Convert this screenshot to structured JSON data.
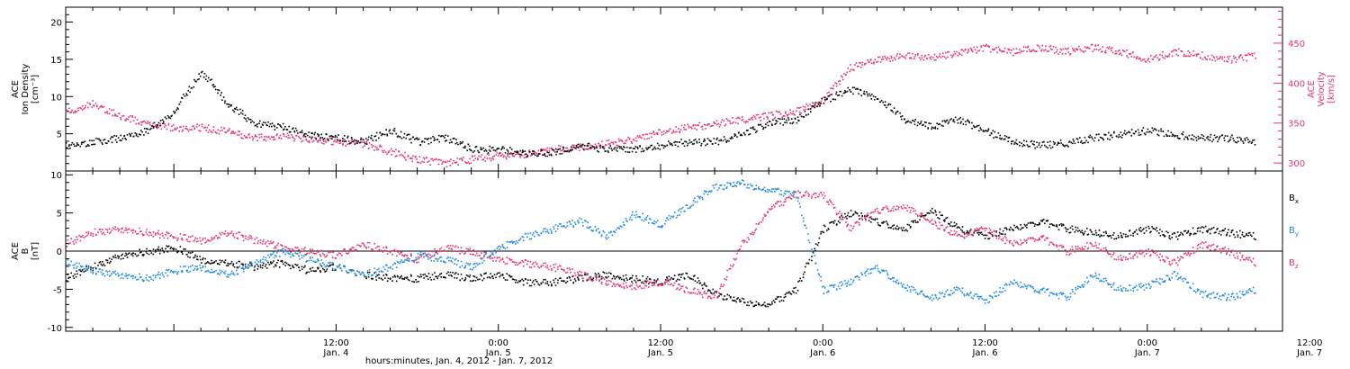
{
  "colors": {
    "black": "#000000",
    "pink": "#e8336d",
    "blue": "#1f8ae6"
  },
  "x_axis": {
    "label": "hours:minutes, Jan.  4, 2012 - Jan.  7, 2012",
    "range_hours": [
      -8,
      82
    ],
    "ticks": [
      {
        "h": 12,
        "time": "12:00",
        "date": "Jan. 4"
      },
      {
        "h": 24,
        "time": "0:00",
        "date": "Jan. 5"
      },
      {
        "h": 36,
        "time": "12:00",
        "date": "Jan. 5"
      },
      {
        "h": 48,
        "time": "0:00",
        "date": "Jan. 6"
      },
      {
        "h": 60,
        "time": "12:00",
        "date": "Jan. 6"
      },
      {
        "h": 72,
        "time": "0:00",
        "date": "Jan. 7"
      },
      {
        "h": 84,
        "time": "12:00",
        "date": "Jan. 7"
      }
    ]
  },
  "chart_data": [
    {
      "type": "scatter",
      "panel": "top",
      "left_axis": {
        "label_lines": [
          "ACE",
          "Ion Density",
          "[cm⁻³]"
        ],
        "range": [
          0,
          22
        ],
        "ticks": [
          5,
          10,
          15,
          20
        ]
      },
      "right_axis": {
        "label_lines": [
          "ACE",
          "Velocity",
          "[km/s]"
        ],
        "range": [
          290,
          495
        ],
        "ticks": [
          300,
          350,
          400,
          450
        ]
      },
      "grid": false,
      "series": [
        {
          "axis": "left",
          "color": "black",
          "x": [
            -8,
            -6,
            -4,
            -2,
            0,
            2,
            4,
            6,
            8,
            10,
            12,
            14,
            16,
            18,
            20,
            22,
            24,
            26,
            28,
            30,
            32,
            34,
            36,
            38,
            40,
            42,
            44,
            46,
            48,
            50,
            52,
            54,
            56,
            58,
            60,
            62,
            64,
            66,
            68,
            70,
            72,
            74,
            76,
            78,
            80
          ],
          "y": [
            3.5,
            4.0,
            4.5,
            5.5,
            8.0,
            13.5,
            9.0,
            6.5,
            6.0,
            5.0,
            4.5,
            4.0,
            5.5,
            4.0,
            4.5,
            3.0,
            3.0,
            2.5,
            2.5,
            3.5,
            3.0,
            3.0,
            3.5,
            4.0,
            4.0,
            5.0,
            6.5,
            7.0,
            9.5,
            11.0,
            10.0,
            7.0,
            6.0,
            7.0,
            5.5,
            4.0,
            3.5,
            3.8,
            4.5,
            5.0,
            5.5,
            5.0,
            4.5,
            4.5,
            4.0
          ]
        },
        {
          "axis": "right",
          "color": "pink",
          "x": [
            -8,
            -6,
            -4,
            -2,
            0,
            2,
            4,
            6,
            8,
            10,
            12,
            14,
            16,
            18,
            20,
            22,
            24,
            26,
            28,
            30,
            32,
            34,
            36,
            38,
            40,
            42,
            44,
            46,
            48,
            50,
            52,
            54,
            56,
            58,
            60,
            62,
            64,
            66,
            68,
            70,
            72,
            74,
            76,
            78,
            80
          ],
          "y": [
            365,
            375,
            360,
            350,
            345,
            345,
            340,
            332,
            335,
            330,
            328,
            325,
            315,
            305,
            300,
            305,
            310,
            312,
            318,
            320,
            325,
            330,
            340,
            345,
            350,
            355,
            360,
            365,
            380,
            420,
            430,
            435,
            432,
            438,
            445,
            440,
            445,
            440,
            445,
            440,
            430,
            440,
            435,
            430,
            435
          ]
        }
      ]
    },
    {
      "type": "scatter",
      "panel": "bottom",
      "left_axis": {
        "label_lines": [
          "ACE",
          "B",
          "[nT]"
        ],
        "range": [
          -10.5,
          10.5
        ],
        "ticks": [
          -10,
          -5,
          0,
          5,
          10
        ]
      },
      "zero_line": true,
      "grid": false,
      "legend_labels": [
        {
          "text": "B",
          "sub": "x",
          "color": "black"
        },
        {
          "text": "B",
          "sub": "y",
          "color": "blue"
        },
        {
          "text": "B",
          "sub": "z",
          "color": "pink"
        }
      ],
      "series": [
        {
          "color": "black",
          "x": [
            -8,
            -6,
            -4,
            -2,
            0,
            2,
            4,
            6,
            8,
            10,
            12,
            14,
            16,
            18,
            20,
            22,
            24,
            26,
            28,
            30,
            32,
            34,
            36,
            38,
            40,
            42,
            44,
            46,
            48,
            50,
            52,
            54,
            56,
            58,
            60,
            62,
            64,
            66,
            68,
            70,
            72,
            74,
            76,
            78,
            80
          ],
          "y": [
            -3.5,
            -2.0,
            -0.5,
            0.0,
            0.5,
            -1.0,
            -1.5,
            -2.0,
            -1.5,
            -2.5,
            -2.0,
            -3.0,
            -3.5,
            -3.5,
            -3.0,
            -3.5,
            -3.0,
            -4.0,
            -4.0,
            -3.5,
            -3.0,
            -3.5,
            -4.0,
            -3.0,
            -5.5,
            -6.5,
            -7.0,
            -5.0,
            3.0,
            5.0,
            4.0,
            3.0,
            5.5,
            3.0,
            2.0,
            3.0,
            4.0,
            3.0,
            2.5,
            2.0,
            3.0,
            2.0,
            3.0,
            2.5,
            2.0
          ]
        },
        {
          "color": "blue",
          "x": [
            -8,
            -6,
            -4,
            -2,
            0,
            2,
            4,
            6,
            8,
            10,
            12,
            14,
            16,
            18,
            20,
            22,
            24,
            26,
            28,
            30,
            32,
            34,
            36,
            38,
            40,
            42,
            44,
            46,
            48,
            50,
            52,
            54,
            56,
            58,
            60,
            62,
            64,
            66,
            68,
            70,
            72,
            74,
            76,
            78,
            80
          ],
          "y": [
            -1.5,
            -2.5,
            -3.0,
            -3.5,
            -2.5,
            -2.0,
            -3.0,
            -1.5,
            0.0,
            -1.0,
            -2.0,
            -3.0,
            -2.0,
            -0.5,
            -1.0,
            -2.0,
            0.5,
            2.0,
            3.0,
            4.0,
            2.0,
            5.0,
            3.5,
            6.0,
            8.5,
            9.0,
            8.0,
            7.5,
            -5.0,
            -4.0,
            -2.0,
            -4.5,
            -6.0,
            -5.0,
            -6.5,
            -4.0,
            -5.0,
            -6.0,
            -3.0,
            -5.0,
            -4.5,
            -3.0,
            -5.5,
            -6.0,
            -5.0
          ]
        },
        {
          "color": "pink",
          "x": [
            -8,
            -6,
            -4,
            -2,
            0,
            2,
            4,
            6,
            8,
            10,
            12,
            14,
            16,
            18,
            20,
            22,
            24,
            26,
            28,
            30,
            32,
            34,
            36,
            38,
            40,
            42,
            44,
            46,
            48,
            50,
            52,
            54,
            56,
            58,
            60,
            62,
            64,
            66,
            68,
            70,
            72,
            74,
            76,
            78,
            80
          ],
          "y": [
            1.0,
            2.5,
            3.0,
            2.5,
            2.0,
            1.5,
            2.5,
            1.5,
            0.5,
            0.0,
            -0.5,
            1.0,
            0.0,
            -1.0,
            0.5,
            0.0,
            -1.0,
            -1.5,
            -2.0,
            -3.0,
            -4.0,
            -4.5,
            -4.0,
            -5.0,
            -6.0,
            1.0,
            5.5,
            7.5,
            7.5,
            3.0,
            5.5,
            6.0,
            4.0,
            2.0,
            3.0,
            1.0,
            2.0,
            0.0,
            1.0,
            -1.0,
            0.0,
            -1.5,
            1.0,
            0.0,
            -1.5
          ]
        }
      ]
    }
  ]
}
